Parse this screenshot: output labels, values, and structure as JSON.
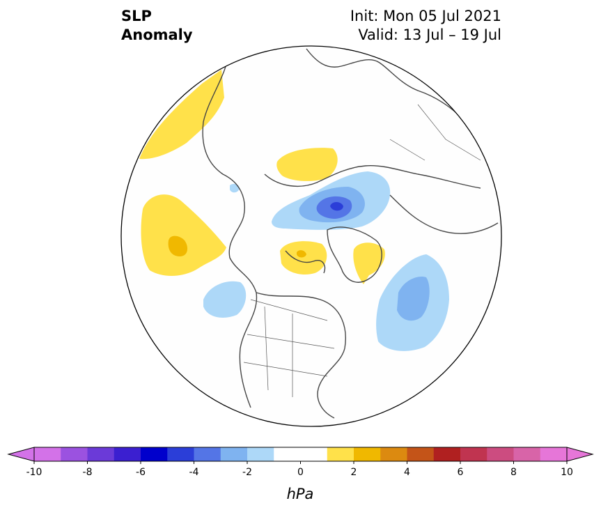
{
  "title": {
    "left_line1": "SLP",
    "left_line2": "Anomaly",
    "right_line1": "Init: Mon 05 Jul 2021",
    "right_line2": "Valid: 13 Jul – 19 Jul"
  },
  "map": {
    "projection": "north-polar-stereographic",
    "region": "Northern Hemisphere (North America / Arctic / Europe)",
    "background_color": "#fefefe",
    "coastline_color": "#444444",
    "features": [
      {
        "name": "positive-anomaly",
        "category": "1 to 2"
      },
      {
        "name": "positive-anomaly-core",
        "category": "2 to 3"
      },
      {
        "name": "negative-anomaly",
        "category": "-2 to -1"
      },
      {
        "name": "negative-anomaly-medium",
        "category": "-3 to -2"
      },
      {
        "name": "negative-anomaly-strong",
        "category": "-4 to -3"
      },
      {
        "name": "negative-anomaly-core",
        "category": "-5 to -4"
      }
    ]
  },
  "colorbar": {
    "label": "hPa",
    "ticks": [
      "-10",
      "-8",
      "-6",
      "-4",
      "-2",
      "0",
      "2",
      "4",
      "6",
      "8",
      "10"
    ],
    "bins": [
      {
        "from": -10,
        "to": -9,
        "color": "#d372e8"
      },
      {
        "from": -9,
        "to": -8,
        "color": "#9b52e0"
      },
      {
        "from": -8,
        "to": -7,
        "color": "#6b3ad8"
      },
      {
        "from": -7,
        "to": -6,
        "color": "#3b1fd0"
      },
      {
        "from": -6,
        "to": -5,
        "color": "#0000cc"
      },
      {
        "from": -5,
        "to": -4,
        "color": "#2b3ed8"
      },
      {
        "from": -4,
        "to": -3,
        "color": "#5475e6"
      },
      {
        "from": -3,
        "to": -2,
        "color": "#7fb3f0"
      },
      {
        "from": -2,
        "to": -1,
        "color": "#add8f8"
      },
      {
        "from": -1,
        "to": 1,
        "color": "#ffffff"
      },
      {
        "from": 1,
        "to": 2,
        "color": "#ffe14a"
      },
      {
        "from": 2,
        "to": 3,
        "color": "#f0b800"
      },
      {
        "from": 3,
        "to": 4,
        "color": "#dc8a10"
      },
      {
        "from": 4,
        "to": 5,
        "color": "#c45418"
      },
      {
        "from": 5,
        "to": 6,
        "color": "#b02020"
      },
      {
        "from": 6,
        "to": 7,
        "color": "#c03450"
      },
      {
        "from": 7,
        "to": 8,
        "color": "#cc4c80"
      },
      {
        "from": 8,
        "to": 9,
        "color": "#d864a8"
      },
      {
        "from": 9,
        "to": 10,
        "color": "#e676d8"
      }
    ],
    "extend_low_color": "#d372e8",
    "extend_high_color": "#e676d8"
  }
}
